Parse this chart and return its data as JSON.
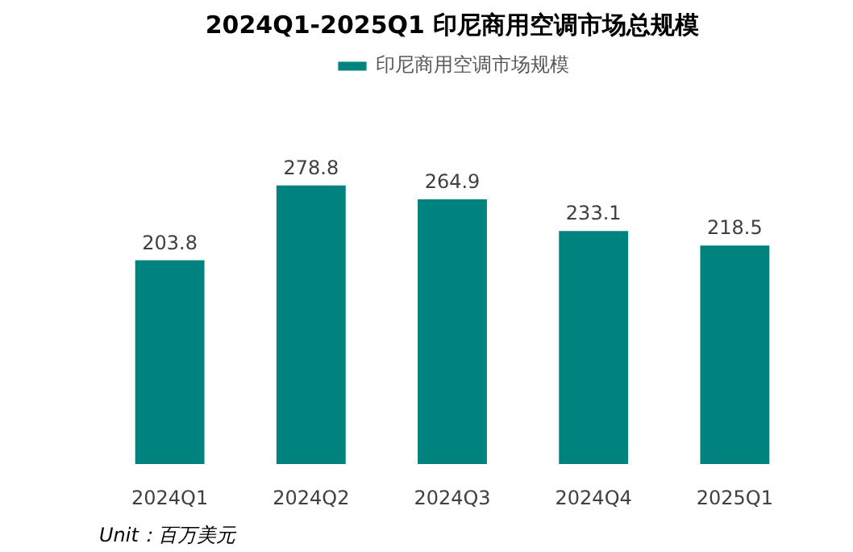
{
  "chart_data": {
    "type": "bar",
    "title": "2024Q1-2025Q1 印尼商用空调市场总规模",
    "categories": [
      "2024Q1",
      "2024Q2",
      "2024Q3",
      "2024Q4",
      "2025Q1"
    ],
    "series": [
      {
        "name": "印尼商用空调市场规模",
        "color": "#00837f",
        "values": [
          203.8,
          278.8,
          264.9,
          233.1,
          218.5
        ]
      }
    ],
    "data_labels": true,
    "legend": "top",
    "grid": false,
    "tick_labels": "x",
    "annotations": [
      "Unit：百万美元"
    ]
  }
}
